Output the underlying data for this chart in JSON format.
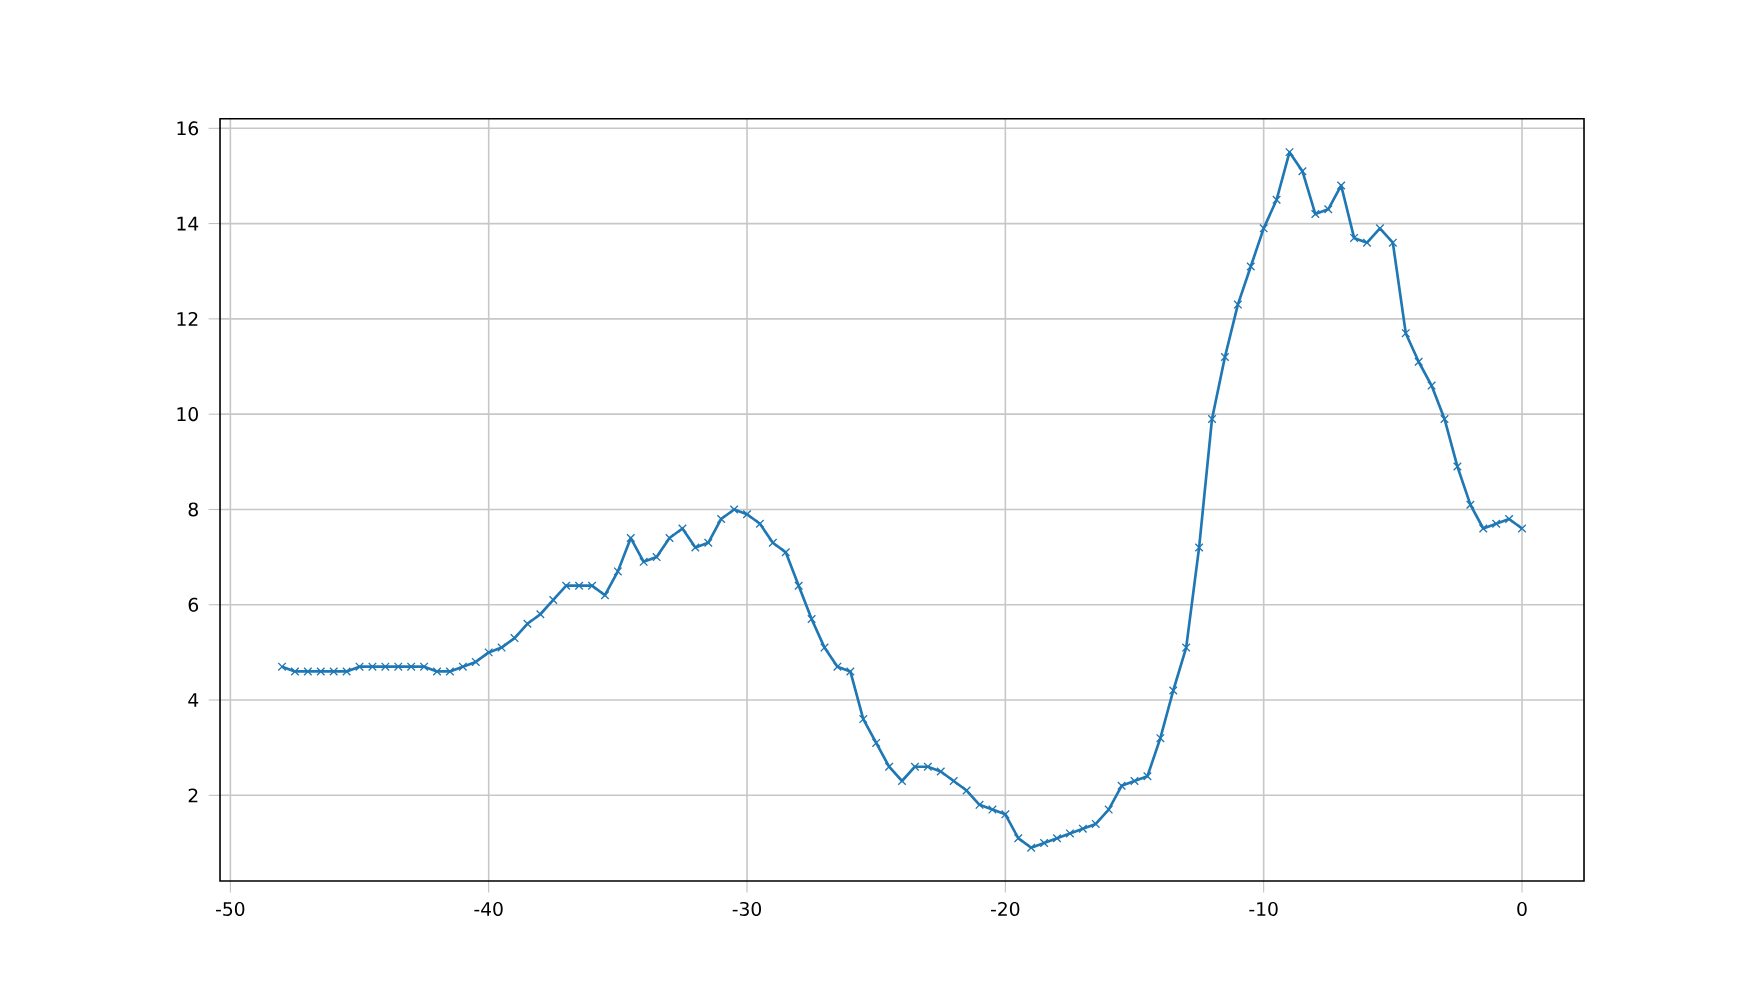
{
  "chart_data": {
    "type": "line",
    "x": [
      -48,
      -47.5,
      -47,
      -46.5,
      -46,
      -45.5,
      -45,
      -44.5,
      -44,
      -43.5,
      -43,
      -42.5,
      -42,
      -41.5,
      -41,
      -40.5,
      -40,
      -39.5,
      -39,
      -38.5,
      -38,
      -37.5,
      -37,
      -36.5,
      -36,
      -35.5,
      -35,
      -34.5,
      -34,
      -33.5,
      -33,
      -32.5,
      -32,
      -31.5,
      -31,
      -30.5,
      -30,
      -29.5,
      -29,
      -28.5,
      -28,
      -27.5,
      -27,
      -26.5,
      -26,
      -25.5,
      -25,
      -24.5,
      -24,
      -23.5,
      -23,
      -22.5,
      -22,
      -21.5,
      -21,
      -20.5,
      -20,
      -19.5,
      -19,
      -18.5,
      -18,
      -17.5,
      -17,
      -16.5,
      -16,
      -15.5,
      -15,
      -14.5,
      -14,
      -13.5,
      -13,
      -12.5,
      -12,
      -11.5,
      -11,
      -10.5,
      -10,
      -9.5,
      -9,
      -8.5,
      -8,
      -7.5,
      -7,
      -6.5,
      -6,
      -5.5,
      -5,
      -4.5,
      -4,
      -3.5,
      -3,
      -2.5,
      -2,
      -1.5,
      -1,
      -0.5,
      0
    ],
    "series": [
      {
        "color": "#1f77b4",
        "values": [
          4.7,
          4.6,
          4.6,
          4.6,
          4.6,
          4.6,
          4.7,
          4.7,
          4.7,
          4.7,
          4.7,
          4.7,
          4.6,
          4.6,
          4.7,
          4.8,
          5.0,
          5.1,
          5.3,
          5.6,
          5.8,
          6.1,
          6.4,
          6.4,
          6.4,
          6.2,
          6.7,
          7.4,
          6.9,
          7.0,
          7.4,
          7.6,
          7.2,
          7.3,
          7.8,
          8.0,
          7.9,
          7.7,
          7.3,
          7.1,
          6.4,
          5.7,
          5.1,
          4.7,
          4.6,
          3.6,
          3.1,
          2.6,
          2.3,
          2.6,
          2.6,
          2.5,
          2.3,
          2.1,
          1.8,
          1.7,
          1.6,
          1.1,
          0.9,
          1.0,
          1.1,
          1.2,
          1.3,
          1.4,
          1.7,
          2.2,
          2.3,
          2.4,
          3.2,
          4.2,
          5.1,
          7.2,
          9.9,
          11.2,
          12.3,
          13.1,
          13.9,
          14.5,
          15.5,
          15.1,
          14.2,
          14.3,
          14.8,
          13.7,
          13.6,
          13.9,
          13.6,
          11.7,
          11.1,
          10.6,
          9.9,
          8.9,
          8.1,
          7.6,
          7.7,
          7.8,
          7.6
        ]
      }
    ],
    "xlim": [
      -50.4,
      2.4
    ],
    "ylim": [
      0.2,
      16.2
    ],
    "xticks": [
      -50,
      -40,
      -30,
      -20,
      -10,
      0
    ],
    "yticks": [
      2,
      4,
      6,
      8,
      10,
      12,
      14,
      16
    ],
    "grid": true,
    "marker": "cross",
    "line_style": "solid"
  }
}
